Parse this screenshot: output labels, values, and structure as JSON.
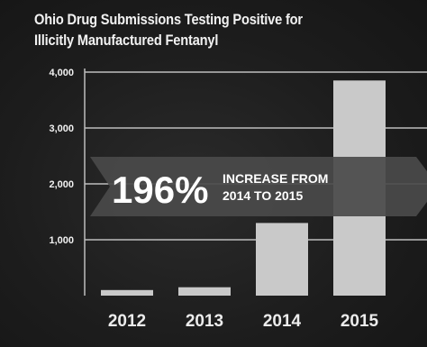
{
  "title_lines": [
    "Ohio Drug Submissions Testing Positive for",
    "Illicitly Manufactured Fentanyl"
  ],
  "annotation": {
    "value": "196%",
    "line1": "INCREASE FROM",
    "line2": "2014 TO 2015"
  },
  "colors": {
    "background": "#1e1e1e",
    "bar": "#c9c9c9",
    "gridline": "#bdbdbd",
    "arrow": "#4a4a4a",
    "text": "#f2f2f2"
  },
  "chart_data": {
    "type": "bar",
    "title": "Ohio Drug Submissions Testing Positive for Illicitly Manufactured Fentanyl",
    "categories": [
      "2012",
      "2013",
      "2014",
      "2015"
    ],
    "values": [
      100,
      150,
      1300,
      3850
    ],
    "ylim": [
      0,
      4000
    ],
    "yticks": [
      "1,000",
      "2,000",
      "3,000",
      "4,000"
    ],
    "ytick_values": [
      1000,
      2000,
      3000,
      4000
    ],
    "xlabel": "",
    "ylabel": "",
    "grid": true
  }
}
